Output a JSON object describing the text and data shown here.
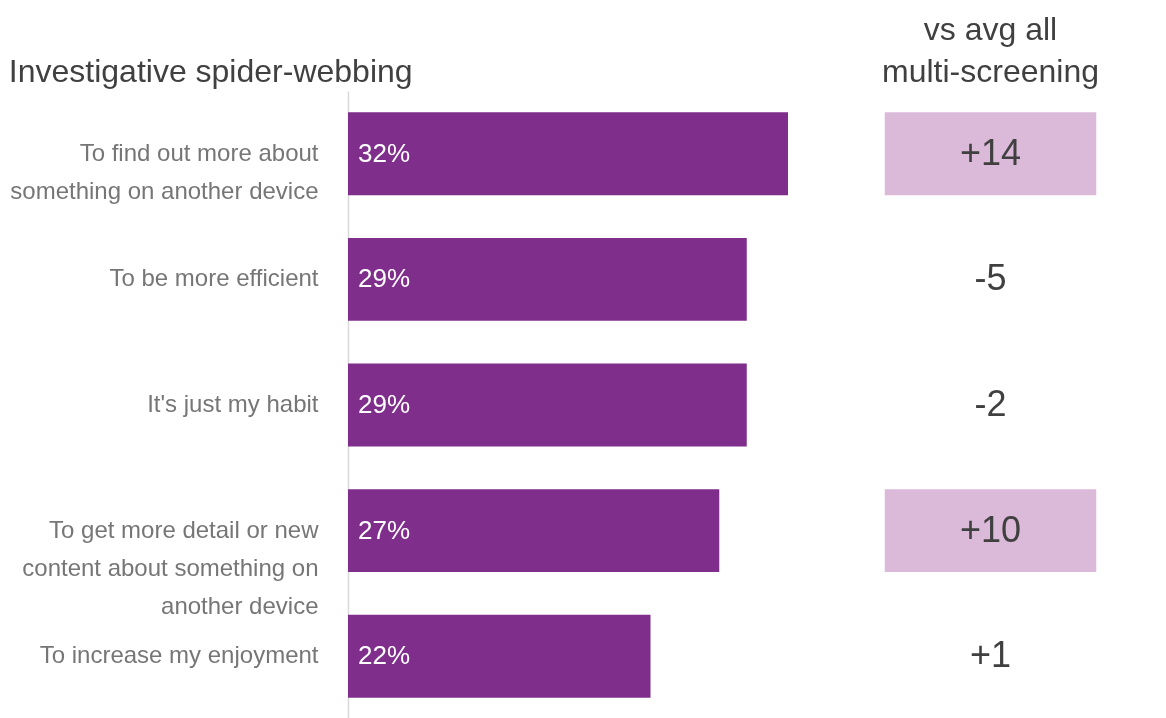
{
  "chart_data": [
    {
      "type": "bar",
      "orientation": "horizontal",
      "title": "Investigative spider-webbing",
      "categories": [
        "To find out more about something on another device",
        "To be more efficient",
        "It's just my habit",
        "To get more detail or new content about something on another device",
        "To increase my enjoyment"
      ],
      "values": [
        32,
        29,
        29,
        27,
        22
      ],
      "value_labels": [
        "32%",
        "29%",
        "29%",
        "27%",
        "22%"
      ],
      "color": "#7f2e8c",
      "grid": false,
      "tick_labels": "y"
    },
    {
      "type": "other",
      "title": "vs avg all multi-screening",
      "values": [
        14,
        -5,
        -2,
        10,
        1
      ],
      "value_labels": [
        "+14",
        "-5",
        "-2",
        "+10",
        "+1"
      ],
      "colors": [
        "#dbb9d9",
        null,
        null,
        "#dbb9d9",
        null
      ]
    }
  ]
}
